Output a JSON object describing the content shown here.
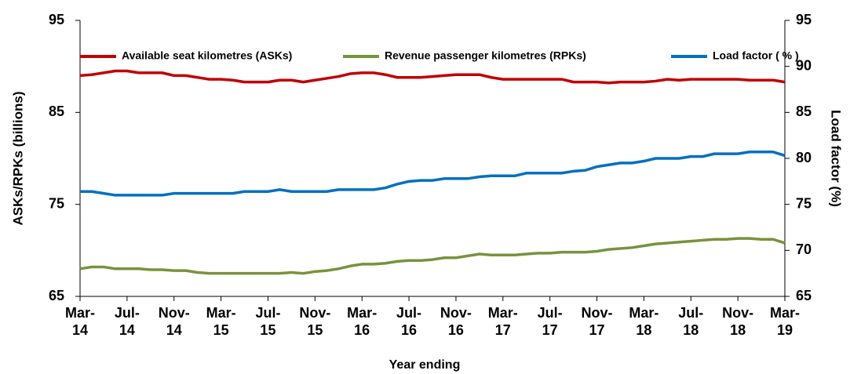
{
  "chart_data": {
    "type": "line",
    "xlabel": "Year ending",
    "ylabel": "ASKs/RPKs (billions)",
    "y2label": "Load factor (%)",
    "categories": [
      "Mar-\n14",
      null,
      null,
      null,
      "Jul-\n14",
      null,
      null,
      null,
      "Nov-\n14",
      null,
      null,
      null,
      "Mar-\n15",
      null,
      null,
      null,
      "Jul-\n15",
      null,
      null,
      null,
      "Nov-\n15",
      null,
      null,
      null,
      "Mar-\n16",
      null,
      null,
      null,
      "Jul-\n16",
      null,
      null,
      null,
      "Nov-\n16",
      null,
      null,
      null,
      "Mar-\n17",
      null,
      null,
      null,
      "Jul-\n17",
      null,
      null,
      null,
      "Nov-\n17",
      null,
      null,
      null,
      "Mar-\n18",
      null,
      null,
      null,
      "Jul-\n18",
      null,
      null,
      null,
      "Nov-\n18",
      null,
      null,
      null,
      "Mar-\n19"
    ],
    "ylim": [
      65,
      95
    ],
    "yticks": [
      65,
      75,
      85,
      95
    ],
    "y2lim": [
      65,
      95
    ],
    "y2ticks": [
      65,
      70,
      75,
      80,
      85,
      90,
      95
    ],
    "legend": "top",
    "series": [
      {
        "name": "Available seat kilometres (ASKs)",
        "color": "#c00000",
        "values": [
          89.0,
          89.1,
          89.3,
          89.5,
          89.5,
          89.3,
          89.3,
          89.3,
          89.0,
          89.0,
          88.8,
          88.6,
          88.6,
          88.5,
          88.3,
          88.3,
          88.3,
          88.5,
          88.5,
          88.3,
          88.5,
          88.7,
          88.9,
          89.2,
          89.3,
          89.3,
          89.1,
          88.8,
          88.8,
          88.8,
          88.9,
          89.0,
          89.1,
          89.1,
          89.1,
          88.8,
          88.6,
          88.6,
          88.6,
          88.6,
          88.6,
          88.6,
          88.3,
          88.3,
          88.3,
          88.2,
          88.3,
          88.3,
          88.3,
          88.4,
          88.6,
          88.5,
          88.6,
          88.6,
          88.6,
          88.6,
          88.6,
          88.5,
          88.5,
          88.5,
          88.3
        ]
      },
      {
        "name": "Revenue passenger kilometres (RPKs)",
        "color": "#77933c",
        "values": [
          68.0,
          68.2,
          68.2,
          68.0,
          68.0,
          68.0,
          67.9,
          67.9,
          67.8,
          67.8,
          67.6,
          67.5,
          67.5,
          67.5,
          67.5,
          67.5,
          67.5,
          67.5,
          67.6,
          67.5,
          67.7,
          67.8,
          68.0,
          68.3,
          68.5,
          68.5,
          68.6,
          68.8,
          68.9,
          68.9,
          69.0,
          69.2,
          69.2,
          69.4,
          69.6,
          69.5,
          69.5,
          69.5,
          69.6,
          69.7,
          69.7,
          69.8,
          69.8,
          69.8,
          69.9,
          70.1,
          70.2,
          70.3,
          70.5,
          70.7,
          70.8,
          70.9,
          71.0,
          71.1,
          71.2,
          71.2,
          71.3,
          71.3,
          71.2,
          71.2,
          70.8
        ]
      },
      {
        "name": "Load factor ( % )",
        "color": "#0070c0",
        "axis": "y2",
        "values": [
          76.4,
          76.4,
          76.2,
          76.0,
          76.0,
          76.0,
          76.0,
          76.0,
          76.2,
          76.2,
          76.2,
          76.2,
          76.2,
          76.2,
          76.4,
          76.4,
          76.4,
          76.6,
          76.4,
          76.4,
          76.4,
          76.4,
          76.6,
          76.6,
          76.6,
          76.6,
          76.8,
          77.2,
          77.5,
          77.6,
          77.6,
          77.8,
          77.8,
          77.8,
          78.0,
          78.1,
          78.1,
          78.1,
          78.4,
          78.4,
          78.4,
          78.4,
          78.6,
          78.7,
          79.1,
          79.3,
          79.5,
          79.5,
          79.7,
          80.0,
          80.0,
          80.0,
          80.2,
          80.2,
          80.5,
          80.5,
          80.5,
          80.7,
          80.7,
          80.7,
          80.3
        ]
      }
    ]
  }
}
